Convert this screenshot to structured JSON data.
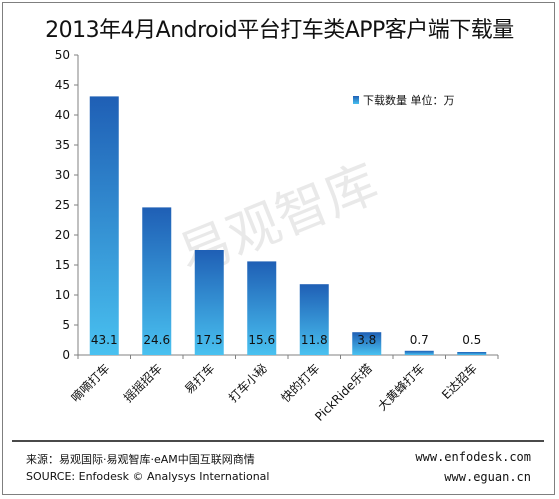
{
  "title": "2013年4月Android平台打车类APP客户端下载量",
  "legend_label": "下载数量 单位：万",
  "watermark": "易观智库",
  "footer": {
    "source_cn": "来源：易观国际·易观智库·eAM中国互联网商情",
    "source_en": "SOURCE: Enfodesk © Analysys International",
    "url1": "www.enfodesk.com",
    "url2": "www.eguan.cn"
  },
  "colors": {
    "bar_top": "#1f5fb5",
    "bar_bottom": "#49c1f0",
    "axis": "#808080"
  },
  "chart_data": {
    "type": "bar",
    "title": "2013年4月Android平台打车类APP客户端下载量",
    "categories": [
      "嘀嘀打车",
      "摇摇招车",
      "易打车",
      "打车小秘",
      "快的打车",
      "PickRide乐搭",
      "大黄蜂打车",
      "E达招车"
    ],
    "series": [
      {
        "name": "下载数量 单位：万",
        "values": [
          43.1,
          24.6,
          17.5,
          15.6,
          11.8,
          3.8,
          0.7,
          0.5
        ]
      }
    ],
    "value_labels": [
      "43.1",
      "24.6",
      "17.5",
      "15.6",
      "11.8",
      "3.8",
      "0.7",
      "0.5"
    ],
    "ylim": [
      0,
      50
    ],
    "yticks": [
      0,
      5,
      10,
      15,
      20,
      25,
      30,
      35,
      40,
      45,
      50
    ],
    "legend_position": "top-right"
  }
}
